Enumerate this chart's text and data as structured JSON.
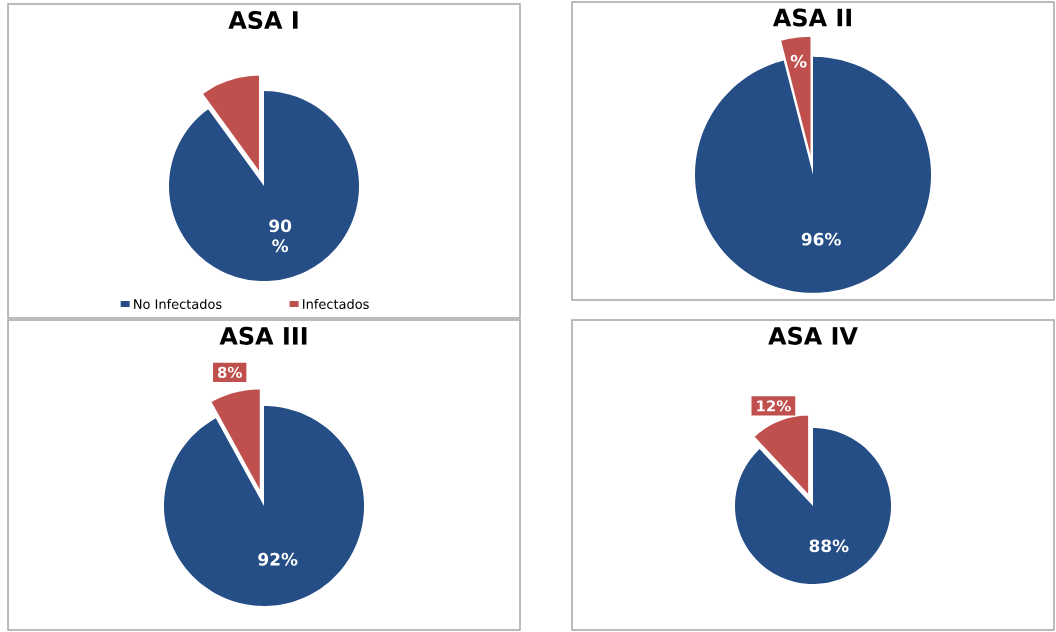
{
  "chart_data": [
    {
      "type": "pie",
      "title": "ASA I",
      "categories": [
        "No Infectados",
        "Infectados"
      ],
      "values": [
        90,
        10
      ],
      "colors": [
        "#254e86",
        "#c0504d"
      ],
      "value_labels": [
        "90 %",
        null
      ],
      "legend": "bottom"
    },
    {
      "type": "pie",
      "title": "ASA II",
      "categories": [
        null,
        null
      ],
      "values": [
        96,
        4
      ],
      "colors": [
        "#254e86",
        "#c0504d"
      ],
      "value_labels": [
        "96%",
        "%"
      ]
    },
    {
      "type": "pie",
      "title": "ASA III",
      "categories": [
        null,
        null
      ],
      "values": [
        92,
        8
      ],
      "colors": [
        "#254e86",
        "#c0504d"
      ],
      "value_labels": [
        "92%",
        "8%"
      ]
    },
    {
      "type": "pie",
      "title": "ASA IV",
      "categories": [
        null,
        null
      ],
      "values": [
        88,
        12
      ],
      "colors": [
        "#254e86",
        "#c0504d"
      ],
      "value_labels": [
        "88%",
        "12%"
      ]
    }
  ]
}
